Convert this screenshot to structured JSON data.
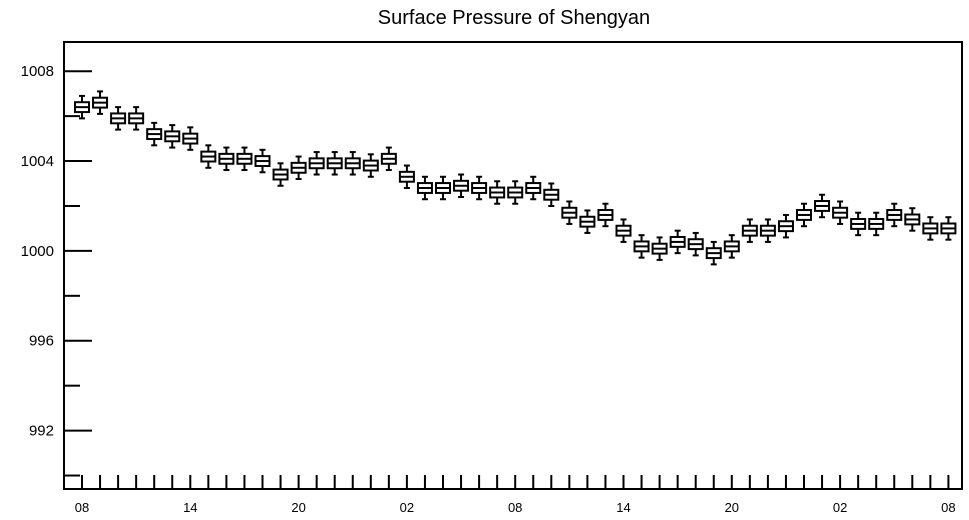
{
  "chart_data": {
    "type": "box",
    "title": "Surface Pressure of Shengyan",
    "xlabel": "",
    "ylabel": "",
    "ylim": [
      989.4,
      1009.3
    ],
    "yticks_major": [
      992,
      996,
      1000,
      1004,
      1008
    ],
    "yticks_major_labels": [
      "992",
      "996",
      "1000",
      "1004",
      "1008"
    ],
    "xtick_labels": [
      "08",
      "14",
      "20",
      "02",
      "08",
      "14",
      "20",
      "02",
      "08"
    ],
    "xtick_label_positions": [
      0,
      6,
      12,
      18,
      24,
      30,
      36,
      42,
      48
    ],
    "x_count": 49,
    "medians": [
      1006.4,
      1006.6,
      1005.9,
      1005.9,
      1005.2,
      1005.1,
      1005.0,
      1004.2,
      1004.1,
      1004.1,
      1004.0,
      1003.4,
      1003.7,
      1003.9,
      1003.9,
      1003.9,
      1003.8,
      1004.1,
      1003.3,
      1002.8,
      1002.8,
      1002.9,
      1002.8,
      1002.6,
      1002.6,
      1002.8,
      1002.5,
      1001.7,
      1001.3,
      1001.6,
      1000.9,
      1000.2,
      1000.1,
      1000.4,
      1000.3,
      999.9,
      1000.2,
      1000.9,
      1000.9,
      1001.1,
      1001.6,
      1002.0,
      1001.7,
      1001.2,
      1001.2,
      1001.6,
      1001.4,
      1001.0,
      1001.0
    ],
    "box_half_height": 0.22,
    "whisker_half_span": 0.5,
    "colors": {
      "axis": "#000000",
      "box_fill": "#ffffff",
      "box_stroke": "#000000"
    }
  }
}
